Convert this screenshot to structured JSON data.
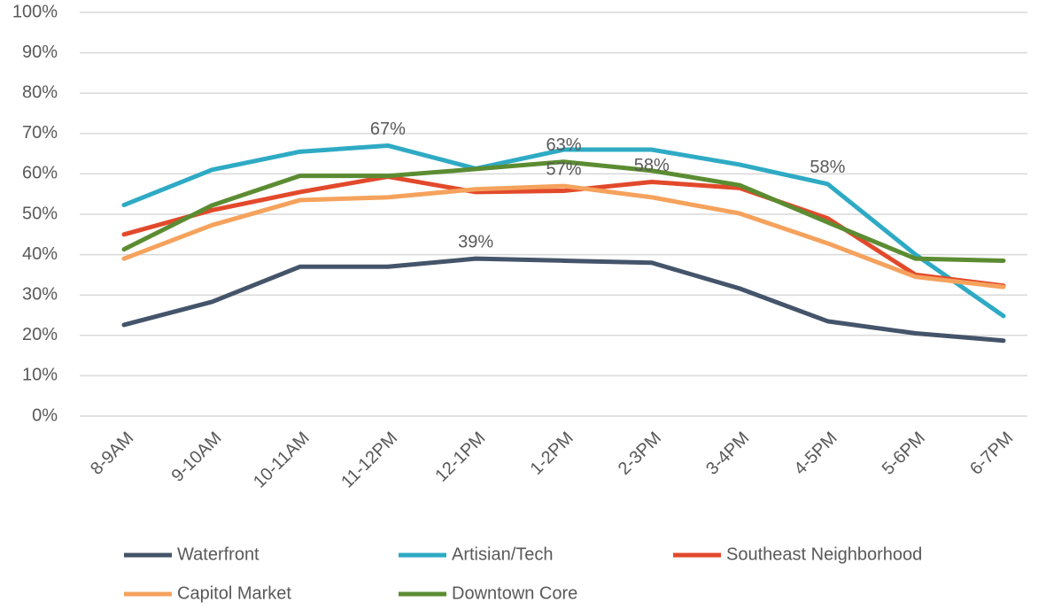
{
  "chart_data": {
    "type": "line",
    "categories": [
      "8-9AM",
      "9-10AM",
      "10-11AM",
      "11-12PM",
      "12-1PM",
      "1-2PM",
      "2-3PM",
      "3-4PM",
      "4-5PM",
      "5-6PM",
      "6-7PM"
    ],
    "series": [
      {
        "name": "Waterfront",
        "color": "#44546a",
        "values": [
          22.6,
          28.3,
          37,
          37,
          39,
          38.5,
          38,
          31.6,
          23.5,
          20.5,
          18.7
        ],
        "value_labels": [
          null,
          null,
          null,
          null,
          "39%",
          null,
          null,
          null,
          null,
          null,
          null
        ]
      },
      {
        "name": "Artisian/Tech",
        "color": "#2eaac4",
        "values": [
          52.3,
          61,
          65.5,
          67,
          61.3,
          66,
          66,
          62.3,
          57.5,
          40,
          24.8
        ],
        "value_labels": [
          null,
          null,
          null,
          "67%",
          null,
          null,
          null,
          null,
          "58%",
          null,
          null
        ]
      },
      {
        "name": "Southeast Neighborhood",
        "color": "#e2492b",
        "values": [
          45,
          51,
          55.5,
          59.3,
          55.5,
          55.8,
          58,
          56.5,
          49,
          35,
          32.3
        ],
        "value_labels": [
          null,
          null,
          null,
          null,
          null,
          null,
          "58%",
          null,
          null,
          null,
          null
        ]
      },
      {
        "name": "Capitol Market",
        "color": "#f5a25d",
        "values": [
          39,
          47.3,
          53.5,
          54.2,
          56.2,
          57,
          54.2,
          50.2,
          42.8,
          34.5,
          32
        ],
        "value_labels": [
          null,
          null,
          null,
          null,
          null,
          "57%",
          null,
          null,
          null,
          null,
          null
        ]
      },
      {
        "name": "Downtown Core",
        "color": "#5b8c32",
        "values": [
          41.3,
          52.2,
          59.5,
          59.5,
          61.2,
          63,
          60.8,
          57.2,
          48,
          39,
          38.5
        ],
        "value_labels": [
          null,
          null,
          null,
          null,
          null,
          "63%",
          null,
          null,
          null,
          null,
          null
        ]
      }
    ],
    "ylim": [
      0,
      100
    ],
    "yticks": [
      {
        "value": 0,
        "label": "0%"
      },
      {
        "value": 10,
        "label": "10%"
      },
      {
        "value": 20,
        "label": "20%"
      },
      {
        "value": 30,
        "label": "30%"
      },
      {
        "value": 40,
        "label": "40%"
      },
      {
        "value": 50,
        "label": "50%"
      },
      {
        "value": 60,
        "label": "60%"
      },
      {
        "value": 70,
        "label": "70%"
      },
      {
        "value": 80,
        "label": "80%"
      },
      {
        "value": 90,
        "label": "90%"
      },
      {
        "value": 100,
        "label": "100%"
      }
    ],
    "grid": true
  }
}
